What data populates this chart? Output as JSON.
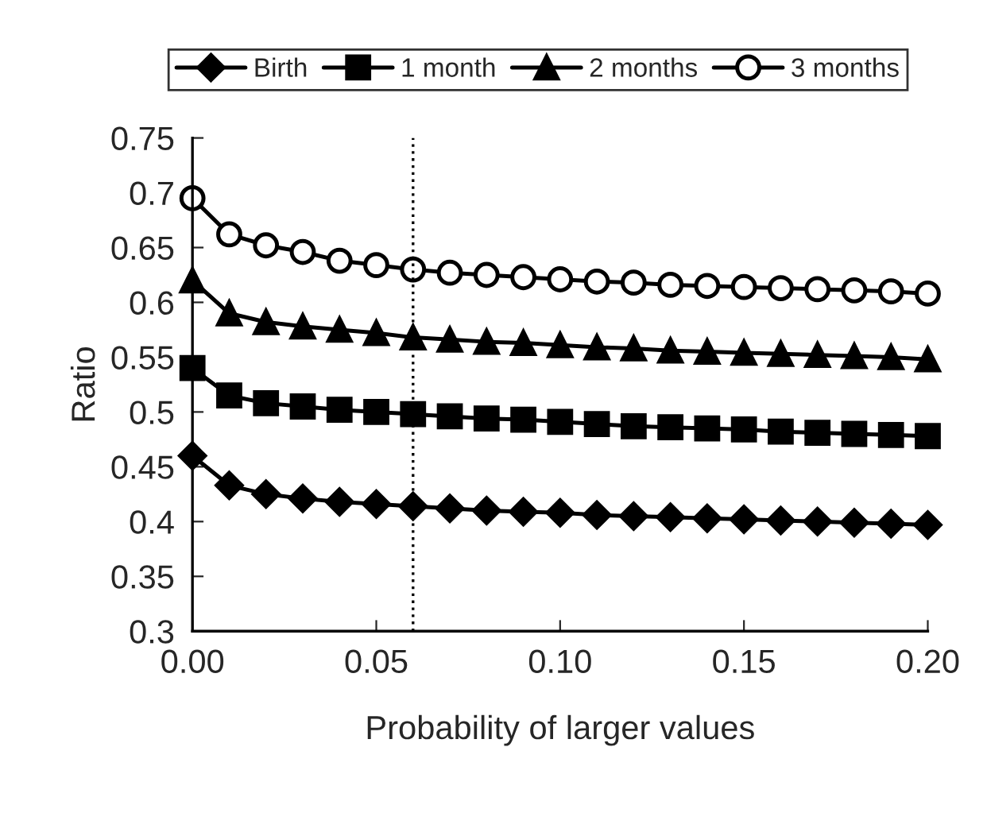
{
  "chart_data": {
    "type": "line",
    "xlabel": "Probability of larger values",
    "ylabel": "Ratio",
    "x": [
      0,
      0.01,
      0.02,
      0.03,
      0.04,
      0.05,
      0.06,
      0.07,
      0.08,
      0.09,
      0.1,
      0.11,
      0.12,
      0.13,
      0.14,
      0.15,
      0.16,
      0.17,
      0.18,
      0.19,
      0.2
    ],
    "series": [
      {
        "name": "Birth",
        "color": "#000000",
        "marker": "diamond",
        "values": [
          0.46,
          0.433,
          0.425,
          0.421,
          0.418,
          0.416,
          0.414,
          0.412,
          0.41,
          0.409,
          0.408,
          0.406,
          0.405,
          0.404,
          0.403,
          0.402,
          0.401,
          0.4,
          0.399,
          0.398,
          0.397
        ]
      },
      {
        "name": "1 month",
        "color": "#000000",
        "marker": "square",
        "values": [
          0.54,
          0.515,
          0.508,
          0.505,
          0.502,
          0.5,
          0.498,
          0.496,
          0.494,
          0.493,
          0.491,
          0.489,
          0.487,
          0.486,
          0.485,
          0.484,
          0.482,
          0.481,
          0.48,
          0.479,
          0.478
        ]
      },
      {
        "name": "2 months",
        "color": "#000000",
        "marker": "triangle",
        "values": [
          0.62,
          0.59,
          0.582,
          0.578,
          0.575,
          0.572,
          0.568,
          0.566,
          0.564,
          0.563,
          0.561,
          0.559,
          0.558,
          0.556,
          0.555,
          0.554,
          0.553,
          0.552,
          0.551,
          0.55,
          0.548
        ]
      },
      {
        "name": "3 months",
        "color": "#000000",
        "marker": "circle",
        "values": [
          0.695,
          0.662,
          0.652,
          0.646,
          0.638,
          0.634,
          0.63,
          0.627,
          0.625,
          0.623,
          0.621,
          0.619,
          0.618,
          0.616,
          0.615,
          0.614,
          0.613,
          0.612,
          0.611,
          0.61,
          0.608
        ]
      }
    ],
    "xlim": [
      0,
      0.2
    ],
    "xticks": [
      {
        "value": 0,
        "label": "0.00"
      },
      0.05,
      {
        "value": 0.1,
        "label": "0.10"
      },
      0.15,
      {
        "value": 0.2,
        "label": "0.20"
      }
    ],
    "ylim": [
      0.3,
      0.75
    ],
    "yticks": [
      0.3,
      0.35,
      {
        "value": 0.4,
        "label": "0.4"
      },
      0.45,
      {
        "value": 0.5,
        "label": "0.5"
      },
      0.55,
      {
        "value": 0.6,
        "label": "0.6"
      },
      0.65,
      {
        "value": 0.7,
        "label": "0.7"
      },
      0.75
    ],
    "ref_lines": [
      {
        "axis": "x",
        "value": 0.06,
        "color": "#000000",
        "line_style": "dotted"
      }
    ],
    "legend": "top",
    "grid": false,
    "line_style": "solid"
  }
}
